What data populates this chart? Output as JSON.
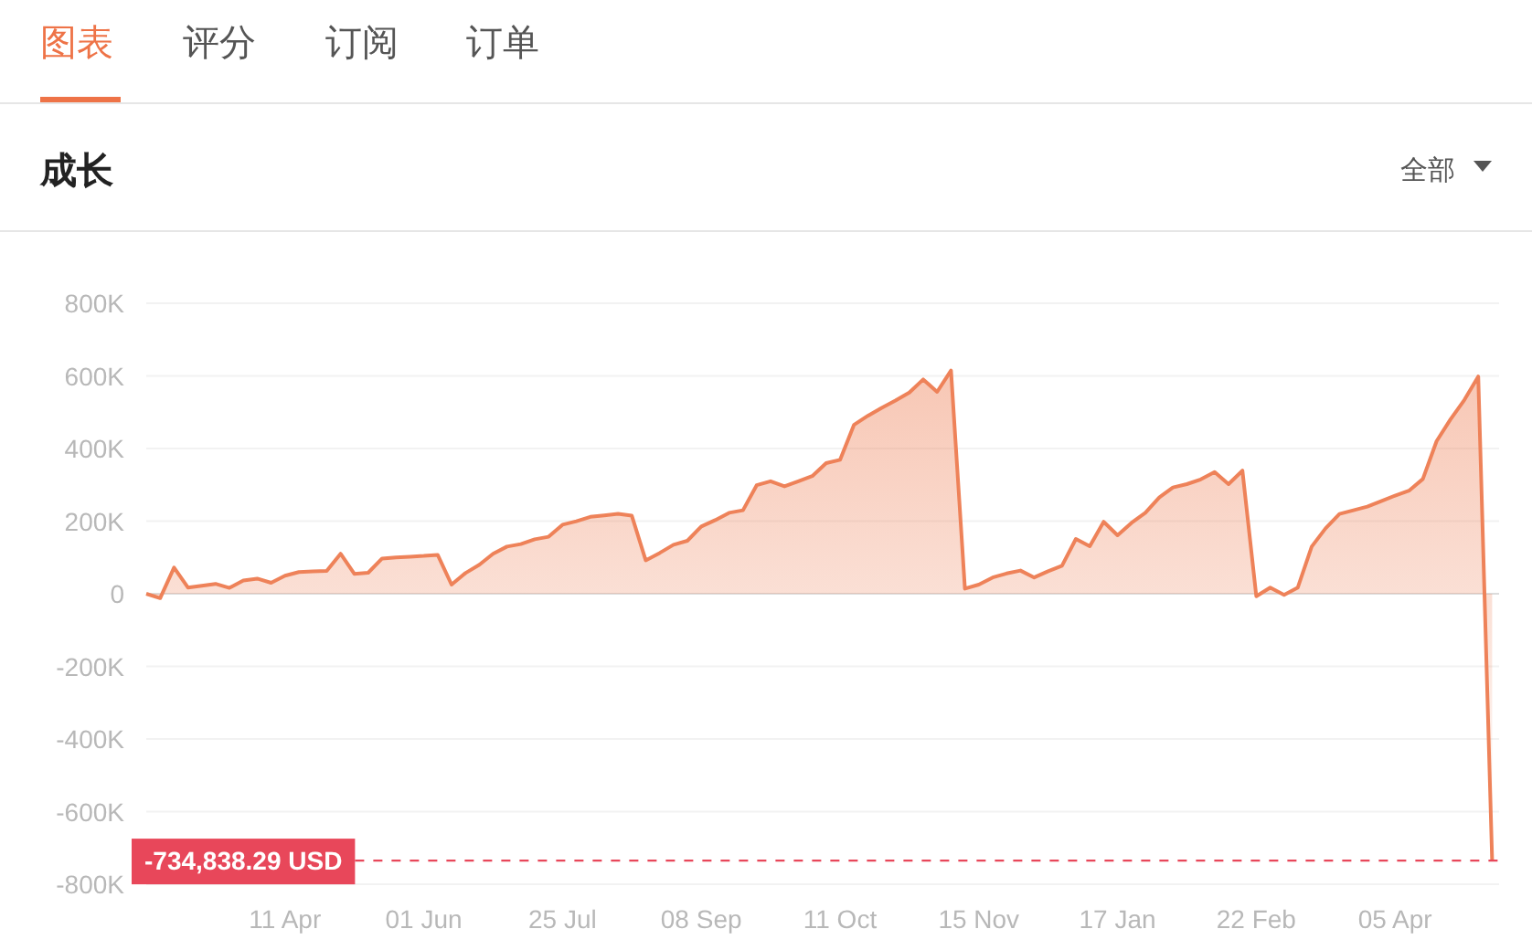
{
  "chart_data": {
    "type": "area",
    "title": "成长",
    "annotations": [
      "图表",
      "评分",
      "订阅",
      "订单",
      "全部"
    ],
    "categories": [
      null,
      null,
      null,
      null,
      null,
      null,
      null,
      null,
      null,
      null,
      "11 Apr",
      null,
      null,
      null,
      null,
      null,
      null,
      null,
      null,
      null,
      "01 Jun",
      null,
      null,
      null,
      null,
      null,
      null,
      null,
      null,
      null,
      "25 Jul",
      null,
      null,
      null,
      null,
      null,
      null,
      null,
      null,
      null,
      "08 Sep",
      null,
      null,
      null,
      null,
      null,
      null,
      null,
      null,
      null,
      "11 Oct",
      null,
      null,
      null,
      null,
      null,
      null,
      null,
      null,
      null,
      "15 Nov",
      null,
      null,
      null,
      null,
      null,
      null,
      null,
      null,
      null,
      "17 Jan",
      null,
      null,
      null,
      null,
      null,
      null,
      null,
      null,
      null,
      "22 Feb",
      null,
      null,
      null,
      null,
      null,
      null,
      null,
      null,
      null,
      "05 Apr",
      null,
      null,
      null,
      null,
      null,
      null,
      null
    ],
    "series": [
      {
        "color": "#ee8259",
        "values": [
          0,
          -12000,
          72000,
          17000,
          22000,
          27000,
          16000,
          36000,
          42000,
          30000,
          50000,
          60000,
          62000,
          63000,
          110000,
          55000,
          58000,
          97000,
          100000,
          102000,
          104000,
          107000,
          25000,
          57000,
          80000,
          110000,
          130000,
          137000,
          150000,
          157000,
          190000,
          200000,
          212000,
          216000,
          220000,
          215000,
          92000,
          112000,
          135000,
          146000,
          185000,
          203000,
          223000,
          230000,
          299000,
          310000,
          296000,
          310000,
          324000,
          360000,
          369000,
          465000,
          490000,
          512000,
          532000,
          554000,
          590000,
          556000,
          615000,
          14000,
          25000,
          45000,
          56000,
          64000,
          45000,
          62000,
          77000,
          151000,
          131000,
          198000,
          161000,
          195000,
          223000,
          265000,
          293000,
          302000,
          315000,
          335000,
          302000,
          339000,
          -7000,
          17000,
          -3000,
          17000,
          130000,
          180000,
          220000,
          230000,
          240000,
          255000,
          270000,
          284000,
          316000,
          420000,
          480000,
          534000,
          598000,
          -735000
        ]
      }
    ],
    "ylim": [
      -800000,
      800000
    ],
    "yticks": [
      {
        "value": -800000,
        "label": "-800K"
      },
      {
        "value": -600000,
        "label": "-600K"
      },
      {
        "value": -400000,
        "label": "-400K"
      },
      {
        "value": -200000,
        "label": "-200K"
      },
      {
        "value": 0,
        "label": "0"
      },
      {
        "value": 200000,
        "label": "200K"
      },
      {
        "value": 400000,
        "label": "400K"
      },
      {
        "value": 600000,
        "label": "600K"
      },
      {
        "value": 800000,
        "label": "800K"
      }
    ],
    "grid": "y",
    "ref_lines": [
      {
        "axis": "y",
        "value": -734838.29,
        "label": "-734,838.29 USD",
        "color": "#e8475a",
        "line_style": "dashed"
      }
    ]
  }
}
